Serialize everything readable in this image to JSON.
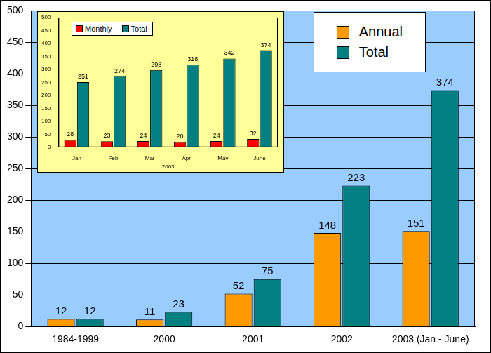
{
  "chart_data": [
    {
      "type": "bar",
      "categories": [
        "1984-1999",
        "2000",
        "2001",
        "2002",
        "2003 (Jan - June)"
      ],
      "series": [
        {
          "name": "Annual",
          "color": "#ff9900",
          "values": [
            12,
            11,
            52,
            148,
            151
          ]
        },
        {
          "name": "Total",
          "color": "#008080",
          "values": [
            12,
            23,
            75,
            223,
            374
          ]
        }
      ],
      "ylim": [
        0,
        500
      ],
      "yticks": [
        0,
        50,
        100,
        150,
        200,
        250,
        300,
        350,
        400,
        450,
        500
      ],
      "grid": true,
      "legend": "upper right",
      "data_labels": true
    },
    {
      "type": "bar",
      "x_label": "2003",
      "categories": [
        "Jan",
        "Feb",
        "Mar",
        "Apr",
        "May",
        "June"
      ],
      "series": [
        {
          "name": "Monthly",
          "color": "#ff0000",
          "values": [
            28,
            23,
            24,
            20,
            24,
            32
          ]
        },
        {
          "name": "Total",
          "color": "#008080",
          "values": [
            251,
            274,
            298,
            318,
            342,
            374
          ]
        }
      ],
      "ylim": [
        0,
        500
      ],
      "yticks": [
        0,
        50,
        100,
        150,
        200,
        250,
        300,
        350,
        400,
        450,
        500
      ],
      "grid": false,
      "legend": "upper left",
      "data_labels": true
    }
  ]
}
